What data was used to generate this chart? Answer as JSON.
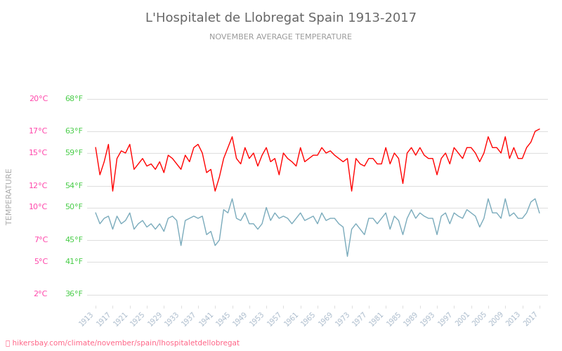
{
  "title": "L'Hospitalet de Llobregat Spain 1913-2017",
  "subtitle": "NOVEMBER AVERAGE TEMPERATURE",
  "ylabel": "TEMPERATURE",
  "xlabel_url": "hikersbay.com/climate/november/spain/lhospitaletdellobregat",
  "yticks_celsius": [
    2,
    5,
    7,
    10,
    12,
    15,
    17,
    20
  ],
  "yticks_fahrenheit": [
    36,
    41,
    45,
    50,
    54,
    59,
    63,
    68
  ],
  "ylim": [
    1,
    21
  ],
  "years": [
    1913,
    1914,
    1915,
    1916,
    1917,
    1918,
    1919,
    1920,
    1921,
    1922,
    1923,
    1924,
    1925,
    1926,
    1927,
    1928,
    1929,
    1930,
    1931,
    1932,
    1933,
    1934,
    1935,
    1936,
    1937,
    1938,
    1939,
    1940,
    1941,
    1942,
    1943,
    1944,
    1945,
    1946,
    1947,
    1948,
    1949,
    1950,
    1951,
    1952,
    1953,
    1954,
    1955,
    1956,
    1957,
    1958,
    1959,
    1960,
    1961,
    1962,
    1963,
    1964,
    1965,
    1966,
    1967,
    1968,
    1969,
    1970,
    1971,
    1972,
    1973,
    1974,
    1975,
    1976,
    1977,
    1978,
    1979,
    1980,
    1981,
    1982,
    1983,
    1984,
    1985,
    1986,
    1987,
    1988,
    1989,
    1990,
    1991,
    1992,
    1993,
    1994,
    1995,
    1996,
    1997,
    1998,
    1999,
    2000,
    2001,
    2002,
    2003,
    2004,
    2005,
    2006,
    2007,
    2008,
    2009,
    2010,
    2011,
    2012,
    2013,
    2014,
    2015,
    2016,
    2017
  ],
  "day_temps": [
    15.5,
    13.0,
    14.2,
    15.8,
    11.5,
    14.5,
    15.2,
    15.0,
    15.8,
    13.5,
    14.0,
    14.5,
    13.8,
    14.0,
    13.5,
    14.2,
    13.2,
    14.8,
    14.5,
    14.0,
    13.5,
    14.8,
    14.2,
    15.5,
    15.8,
    15.0,
    13.2,
    13.5,
    11.5,
    12.8,
    14.5,
    15.5,
    16.5,
    14.5,
    14.0,
    15.5,
    14.5,
    15.0,
    13.8,
    14.8,
    15.5,
    14.2,
    14.5,
    13.0,
    15.0,
    14.5,
    14.2,
    13.8,
    15.5,
    14.2,
    14.5,
    14.8,
    14.8,
    15.5,
    15.0,
    15.2,
    14.8,
    14.5,
    14.2,
    14.5,
    11.5,
    14.5,
    14.0,
    13.8,
    14.5,
    14.5,
    14.0,
    14.0,
    15.5,
    14.0,
    15.0,
    14.5,
    12.2,
    15.0,
    15.5,
    14.8,
    15.5,
    14.8,
    14.5,
    14.5,
    13.0,
    14.5,
    15.0,
    14.0,
    15.5,
    15.0,
    14.5,
    15.5,
    15.5,
    15.0,
    14.2,
    15.0,
    16.5,
    15.5,
    15.5,
    15.0,
    16.5,
    14.5,
    15.5,
    14.5,
    14.5,
    15.5,
    16.0,
    17.0,
    17.2
  ],
  "night_temps": [
    9.5,
    8.5,
    9.0,
    9.2,
    8.0,
    9.2,
    8.5,
    8.8,
    9.5,
    8.0,
    8.5,
    8.8,
    8.2,
    8.5,
    8.0,
    8.5,
    7.8,
    9.0,
    9.2,
    8.8,
    6.5,
    8.8,
    9.0,
    9.2,
    9.0,
    9.2,
    7.5,
    7.8,
    6.5,
    7.0,
    9.8,
    9.5,
    10.8,
    9.0,
    8.8,
    9.5,
    8.5,
    8.5,
    8.0,
    8.5,
    10.0,
    8.8,
    9.5,
    9.0,
    9.2,
    9.0,
    8.5,
    9.0,
    9.5,
    8.8,
    9.0,
    9.2,
    8.5,
    9.5,
    8.8,
    9.0,
    9.0,
    8.5,
    8.2,
    5.5,
    8.0,
    8.5,
    8.0,
    7.5,
    9.0,
    9.0,
    8.5,
    9.0,
    9.5,
    8.0,
    9.2,
    8.8,
    7.5,
    9.0,
    9.8,
    9.0,
    9.5,
    9.2,
    9.0,
    9.0,
    7.5,
    9.2,
    9.5,
    8.5,
    9.5,
    9.2,
    9.0,
    9.8,
    9.5,
    9.2,
    8.2,
    9.0,
    10.8,
    9.5,
    9.5,
    9.0,
    10.8,
    9.2,
    9.5,
    9.0,
    9.0,
    9.5,
    10.5,
    10.8,
    9.5
  ],
  "day_color": "#ff0000",
  "night_color": "#7aabbc",
  "title_color": "#666666",
  "subtitle_color": "#999999",
  "ylabel_color": "#aaaaaa",
  "tick_color_celsius": "#ff44aa",
  "tick_color_fahrenheit": "#44cc44",
  "background_color": "#ffffff",
  "grid_color": "#e0e0e0",
  "xtick_color": "#aabbcc",
  "url_color": "#ff6688",
  "legend_night_color": "#7aabbc",
  "legend_day_color": "#ff0000"
}
